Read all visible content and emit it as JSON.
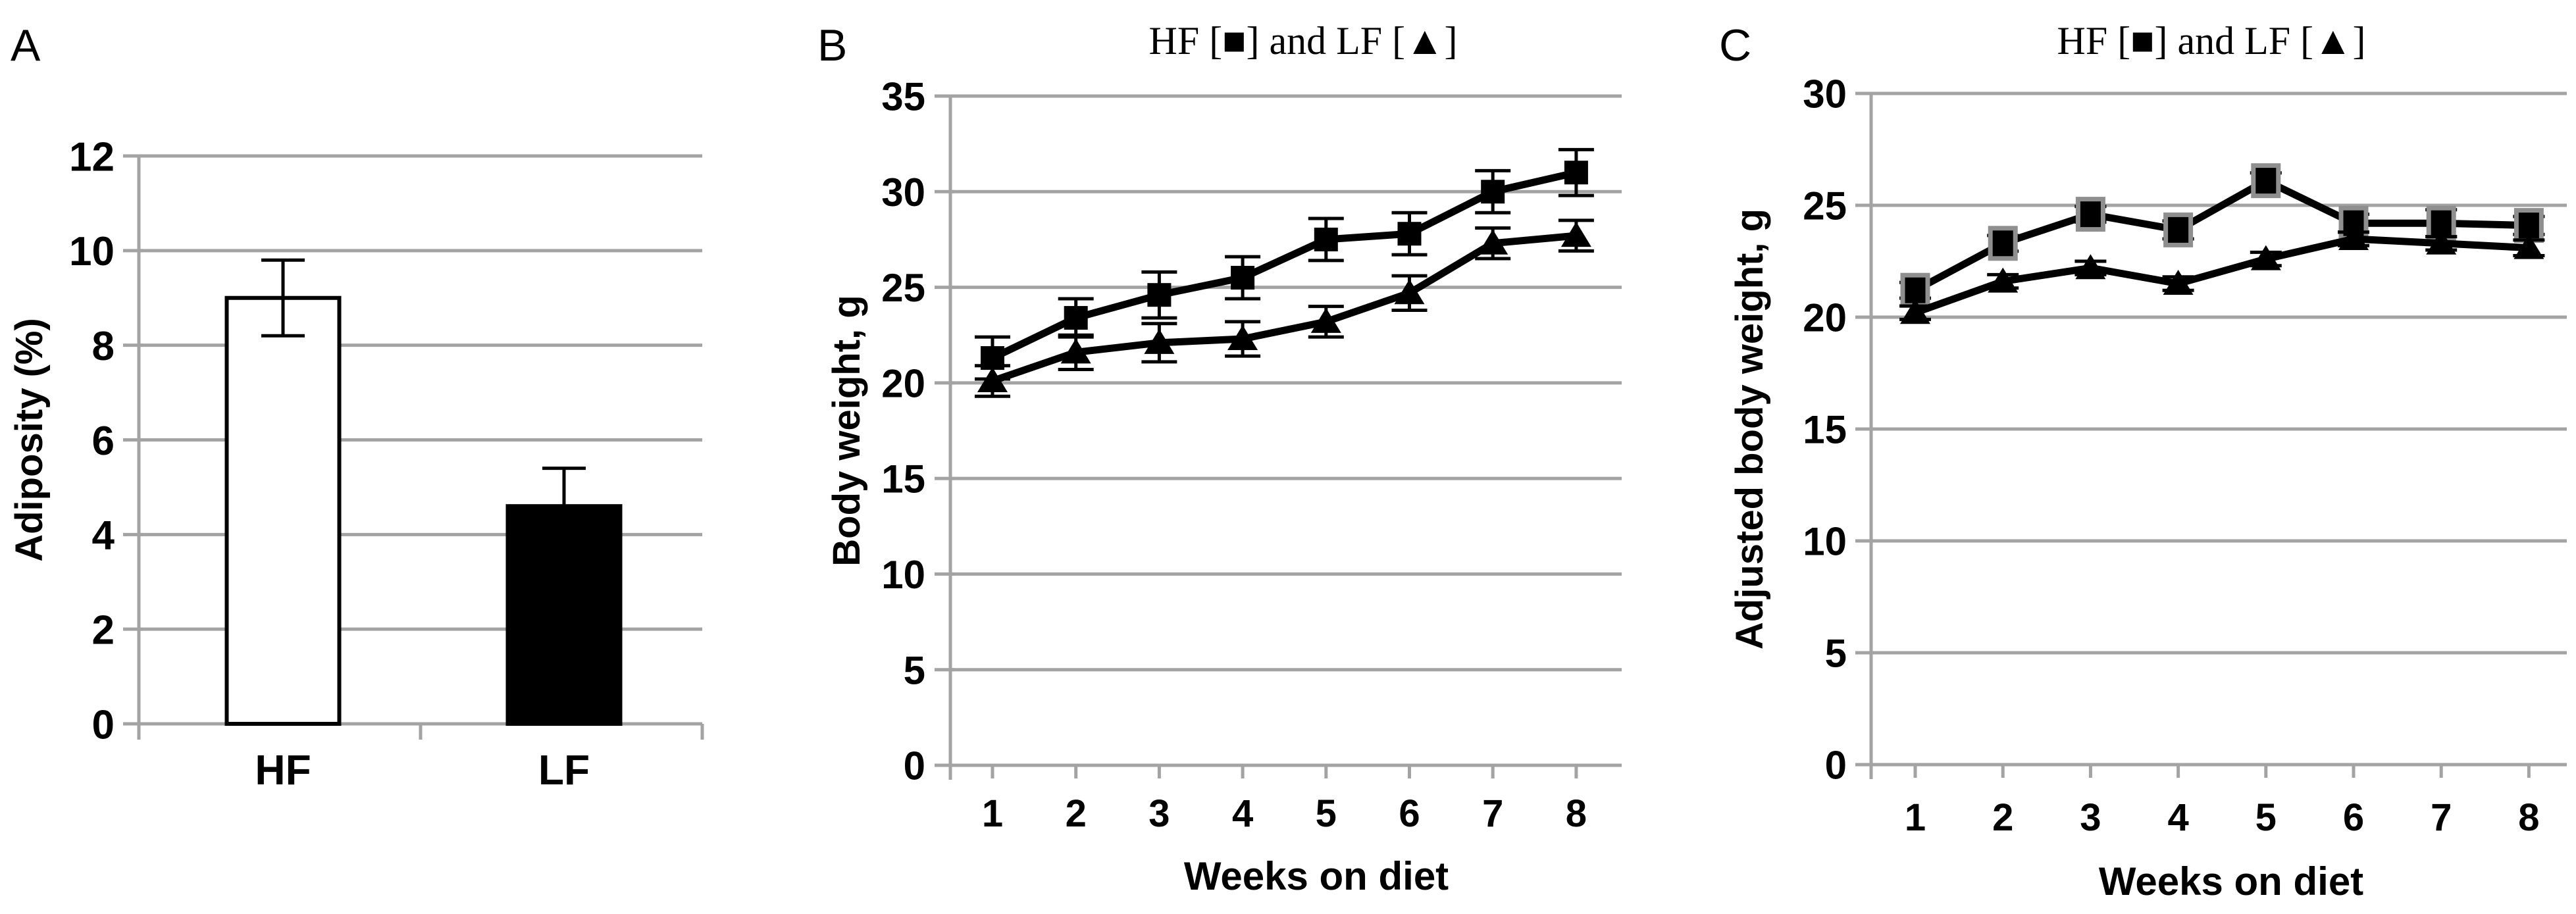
{
  "figure": {
    "background": "#ffffff",
    "panel_letters": [
      "A",
      "B",
      "C"
    ]
  },
  "colors": {
    "grid": "#a3a3a3",
    "ink": "#000000",
    "bar_white_fill": "#ffffff",
    "bar_black_fill": "#000000",
    "panel_c_square_outline": "#8f8f8f"
  },
  "chart_data": [
    {
      "type": "bar",
      "panel_letter": "A",
      "title": "",
      "xlabel": "",
      "ylabel": "Adiposity (%)",
      "ylim": [
        0,
        12
      ],
      "yticks": [
        0,
        2,
        4,
        6,
        8,
        10,
        12
      ],
      "grid": true,
      "categories": [
        "HF",
        "LF"
      ],
      "values": [
        9.0,
        4.6
      ],
      "errors": [
        0.8,
        0.8
      ],
      "bar_fills": [
        "#ffffff",
        "#000000"
      ]
    },
    {
      "type": "line",
      "panel_letter": "B",
      "title": "HF [■] and LF [▲]",
      "xlabel": "Weeks on diet",
      "ylabel": "Body weight, g",
      "ylim": [
        0,
        35
      ],
      "yticks": [
        0,
        5,
        10,
        15,
        20,
        25,
        30,
        35
      ],
      "grid": true,
      "x": [
        1,
        2,
        3,
        4,
        5,
        6,
        7,
        8
      ],
      "series": [
        {
          "name": "HF",
          "marker": "square",
          "marker_fill": "#000000",
          "marker_stroke": "none",
          "values": [
            21.3,
            23.4,
            24.6,
            25.5,
            27.5,
            27.8,
            30.0,
            31.0
          ],
          "errors": [
            1.1,
            1.0,
            1.2,
            1.1,
            1.1,
            1.1,
            1.1,
            1.2
          ]
        },
        {
          "name": "LF",
          "marker": "triangle",
          "marker_fill": "#000000",
          "marker_stroke": "none",
          "values": [
            20.1,
            21.6,
            22.1,
            22.3,
            23.2,
            24.7,
            27.3,
            27.7
          ],
          "errors": [
            0.8,
            0.9,
            1.0,
            0.9,
            0.8,
            0.9,
            0.8,
            0.8
          ]
        }
      ]
    },
    {
      "type": "line",
      "panel_letter": "C",
      "title": "HF [■] and LF [▲]",
      "xlabel": "Weeks on diet",
      "ylabel": "Adjusted body weight, g",
      "ylim": [
        0,
        30
      ],
      "yticks": [
        0,
        5,
        10,
        15,
        20,
        25,
        30
      ],
      "grid": true,
      "x": [
        1,
        2,
        3,
        4,
        5,
        6,
        7,
        8
      ],
      "series": [
        {
          "name": "HF",
          "marker": "square",
          "marker_fill": "#000000",
          "marker_stroke": "#8f8f8f",
          "values": [
            21.2,
            23.3,
            24.6,
            23.9,
            26.1,
            24.2,
            24.2,
            24.1
          ],
          "errors": [
            0.35,
            0.35,
            0.35,
            0.4,
            0.35,
            0.4,
            0.6,
            0.4
          ]
        },
        {
          "name": "LF",
          "marker": "triangle",
          "marker_fill": "#000000",
          "marker_stroke": "none",
          "values": [
            20.2,
            21.6,
            22.2,
            21.5,
            22.6,
            23.5,
            23.3,
            23.1
          ],
          "errors": [
            0.3,
            0.3,
            0.3,
            0.3,
            0.3,
            0.3,
            0.3,
            0.35
          ]
        }
      ]
    }
  ]
}
